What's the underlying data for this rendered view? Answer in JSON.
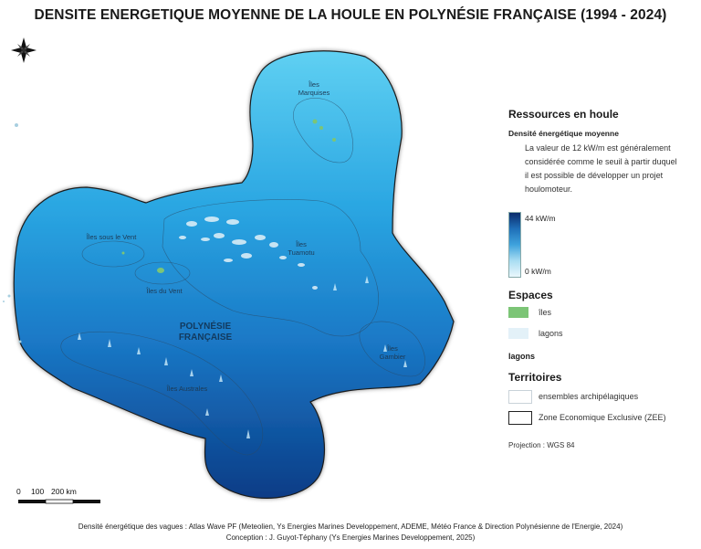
{
  "title": "DENSITE ENERGETIQUE MOYENNE DE LA HOULE EN POLYNÉSIE FRANÇAISE (1994 - 2024)",
  "map": {
    "compass_icon": "compass-rose-icon",
    "region_label_line1": "POLYNÉSIE",
    "region_label_line2": "FRANÇAISE",
    "archipelagos": {
      "marquises_line1": "Îles",
      "marquises_line2": "Marquises",
      "sous_le_vent": "Îles sous le Vent",
      "du_vent": "Îles du Vent",
      "tuamotu_line1": "Îles",
      "tuamotu_line2": "Tuamotu",
      "gambier_line1": "Îles",
      "gambier_line2": "Gambier",
      "australes": "Îles Australes"
    },
    "colors": {
      "deep": "#0a3c86",
      "mid": "#1f8fd6",
      "light": "#56c8ef",
      "islands": "#7cc576",
      "lagoons": "#e3f1f8"
    }
  },
  "legend": {
    "resources_heading": "Ressources en houle",
    "density_subheading": "Densité énergétique moyenne",
    "density_desc_1": "La valeur de 12 kW/m est généralement",
    "density_desc_2": "considérée comme le seuil à partir duquel",
    "density_desc_3": "il est possible de développer un projet",
    "density_desc_4": "houlomoteur.",
    "ramp_max": "44 kW/m",
    "ramp_min": "0 kW/m",
    "espaces_heading": "Espaces",
    "iles": "îles",
    "lagons": "lagons",
    "lagons_bold": "lagons",
    "territoires_heading": "Territoires",
    "ensembles": "ensembles archipélagiques",
    "zee": "Zone Economique Exclusive (ZEE)",
    "projection": "Projection : WGS 84"
  },
  "scale_bar": {
    "l0": "0",
    "l1": "100",
    "l2": "200 km"
  },
  "footer": {
    "line1": "Densité énergétique des vagues : Atlas Wave PF (Meteolien, Ys Energies Marines Developpement, ADEME, Météo France & Direction Polynésienne de l'Energie, 2024)",
    "line2": "Conception : J. Guyot-Téphany (Ys Energies Marines Developpement, 2025)"
  }
}
